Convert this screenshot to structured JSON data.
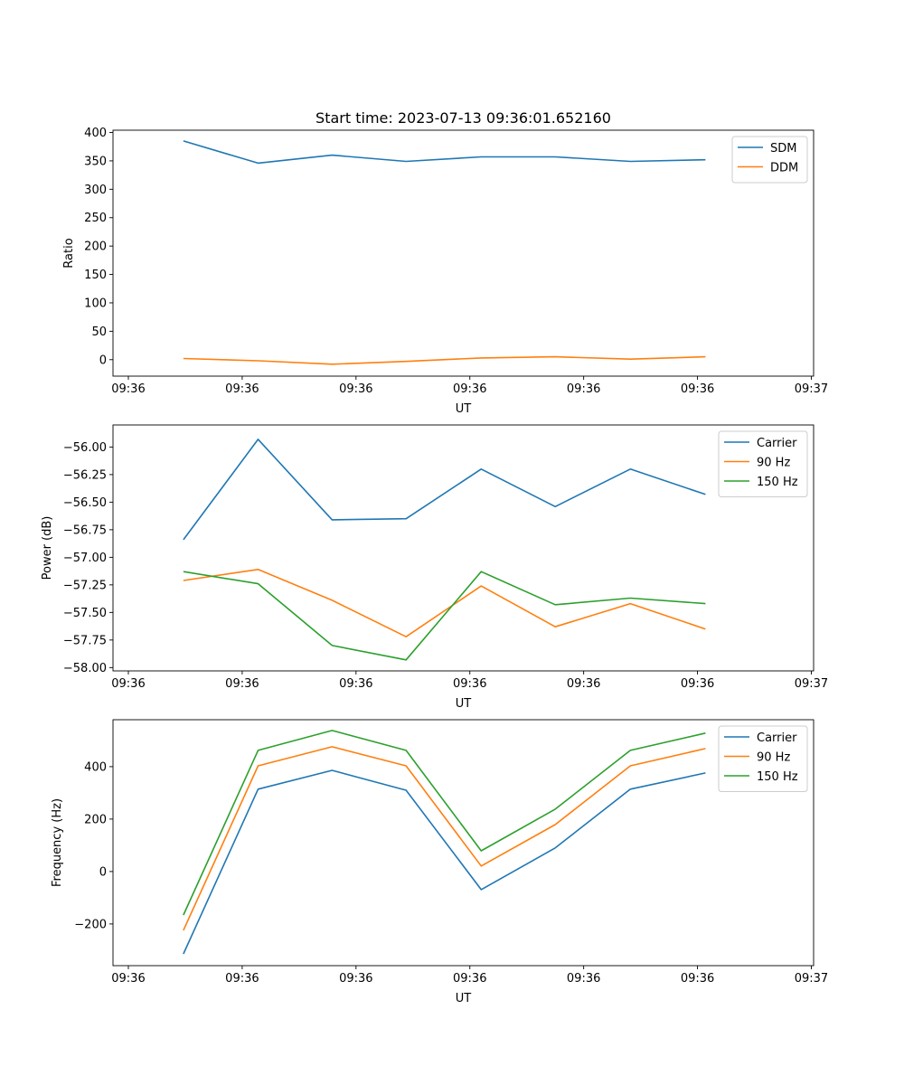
{
  "title": "Start time: 2023-07-13 09:36:01.652160",
  "colors": {
    "blue": "#1f77b4",
    "orange": "#ff7f0e",
    "green": "#2ca02c"
  },
  "chart_data": [
    {
      "type": "line",
      "xlabel": "UT",
      "ylabel": "Ratio",
      "x_unit": "seconds after 09:36:00",
      "x": [
        4.84,
        11.4,
        17.9,
        24.4,
        31.0,
        37.5,
        44.1,
        50.7
      ],
      "xlim": [
        -1.35,
        60.2
      ],
      "xticks": [
        0,
        10,
        20,
        30,
        40,
        50,
        60
      ],
      "xtick_labels": [
        "09:36",
        "09:36",
        "09:36",
        "09:36",
        "09:36",
        "09:36",
        "09:37"
      ],
      "ylim": [
        -29,
        404
      ],
      "yticks": [
        0,
        50,
        100,
        150,
        200,
        250,
        300,
        350,
        400
      ],
      "ytick_labels": [
        "0",
        "50",
        "100",
        "150",
        "200",
        "250",
        "300",
        "350",
        "400"
      ],
      "legend": "top-right",
      "series": [
        {
          "name": "SDM",
          "color": "#1f77b4",
          "values": [
            385,
            346,
            360,
            349,
            357,
            357,
            349,
            352
          ]
        },
        {
          "name": "DDM",
          "color": "#ff7f0e",
          "values": [
            2,
            -2,
            -8,
            -3,
            3,
            5,
            1,
            5
          ]
        }
      ]
    },
    {
      "type": "line",
      "xlabel": "UT",
      "ylabel": "Power (dB)",
      "x_unit": "seconds after 09:36:00",
      "x": [
        4.84,
        11.4,
        17.9,
        24.4,
        31.0,
        37.5,
        44.1,
        50.7
      ],
      "xlim": [
        -1.35,
        60.2
      ],
      "xticks": [
        0,
        10,
        20,
        30,
        40,
        50,
        60
      ],
      "xtick_labels": [
        "09:36",
        "09:36",
        "09:36",
        "09:36",
        "09:36",
        "09:36",
        "09:37"
      ],
      "ylim": [
        -58.03,
        -55.8
      ],
      "yticks": [
        -58.0,
        -57.75,
        -57.5,
        -57.25,
        -57.0,
        -56.75,
        -56.5,
        -56.25,
        -56.0
      ],
      "ytick_labels": [
        "−58.00",
        "−57.75",
        "−57.50",
        "−57.25",
        "−57.00",
        "−56.75",
        "−56.50",
        "−56.25",
        "−56.00"
      ],
      "legend": "top-right",
      "series": [
        {
          "name": "Carrier",
          "color": "#1f77b4",
          "values": [
            -56.84,
            -55.93,
            -56.66,
            -56.65,
            -56.2,
            -56.54,
            -56.2,
            -56.43
          ]
        },
        {
          "name": "90 Hz",
          "color": "#ff7f0e",
          "values": [
            -57.21,
            -57.11,
            -57.39,
            -57.72,
            -57.26,
            -57.63,
            -57.42,
            -57.65
          ]
        },
        {
          "name": "150 Hz",
          "color": "#2ca02c",
          "values": [
            -57.13,
            -57.24,
            -57.8,
            -57.93,
            -57.13,
            -57.43,
            -57.37,
            -57.42
          ]
        }
      ]
    },
    {
      "type": "line",
      "xlabel": "UT",
      "ylabel": "Frequency (Hz)",
      "x_unit": "seconds after 09:36:00",
      "x": [
        4.84,
        11.4,
        17.9,
        24.4,
        31.0,
        37.5,
        44.1,
        50.7
      ],
      "xlim": [
        -1.35,
        60.2
      ],
      "xticks": [
        0,
        10,
        20,
        30,
        40,
        50,
        60
      ],
      "xtick_labels": [
        "09:36",
        "09:36",
        "09:36",
        "09:36",
        "09:36",
        "09:36",
        "09:37"
      ],
      "ylim": [
        -359,
        579
      ],
      "yticks": [
        -200,
        0,
        200,
        400
      ],
      "ytick_labels": [
        "−200",
        "0",
        "200",
        "400"
      ],
      "legend": "top-right",
      "series": [
        {
          "name": "Carrier",
          "color": "#1f77b4",
          "values": [
            -314,
            314,
            386,
            310,
            -69,
            90,
            314,
            376
          ]
        },
        {
          "name": "90 Hz",
          "color": "#ff7f0e",
          "values": [
            -224,
            403,
            476,
            403,
            21,
            179,
            403,
            469
          ]
        },
        {
          "name": "150 Hz",
          "color": "#2ca02c",
          "values": [
            -166,
            462,
            538,
            462,
            79,
            238,
            462,
            528
          ]
        }
      ]
    }
  ]
}
